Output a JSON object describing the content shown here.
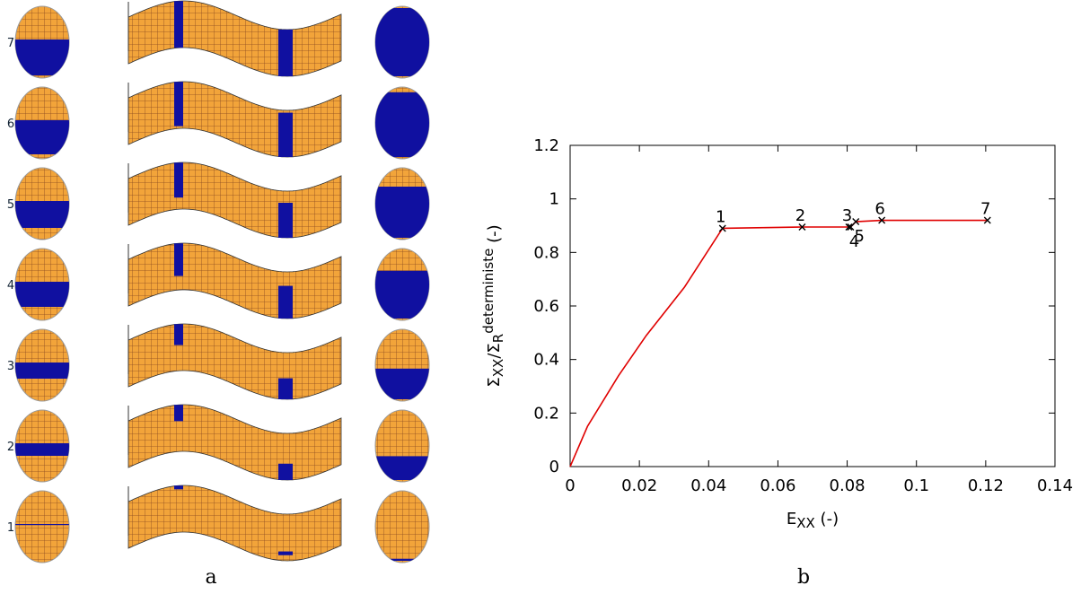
{
  "panel_a": {
    "label": "a",
    "rows": [
      "7",
      "6",
      "5",
      "4",
      "3",
      "2",
      "1"
    ]
  },
  "panel_b": {
    "label": "b"
  },
  "chart_data": {
    "type": "line",
    "xlabel_parts": [
      {
        "text": "E",
        "style": "normal"
      },
      {
        "text": "XX",
        "style": "sub"
      },
      {
        "text": " (-)",
        "style": "normal"
      }
    ],
    "ylabel_parts": [
      {
        "text": "Σ",
        "style": "normal"
      },
      {
        "text": "XX",
        "style": "sub"
      },
      {
        "text": "/Σ",
        "style": "normal"
      },
      {
        "text": "R",
        "style": "sub"
      },
      {
        "text": "deterministe",
        "style": "sup"
      },
      {
        "text": " (-)",
        "style": "normal"
      }
    ],
    "series": [
      {
        "color": "#e00000",
        "x": [
          0,
          0.005,
          0.014,
          0.022,
          0.033,
          0.044,
          0.067,
          0.081,
          0.0825,
          0.09,
          0.1205
        ],
        "values": [
          0,
          0.15,
          0.34,
          0.49,
          0.67,
          0.89,
          0.895,
          0.895,
          0.915,
          0.92,
          0.92
        ]
      }
    ],
    "points": {
      "x": [
        0.044,
        0.067,
        0.0805,
        0.081,
        0.0825,
        0.09,
        0.1205
      ],
      "y": [
        0.89,
        0.895,
        0.895,
        0.895,
        0.915,
        0.92,
        0.92
      ],
      "labels": [
        "1",
        "2",
        "3",
        "4",
        "5",
        "6",
        "7"
      ]
    },
    "xlim": [
      0,
      0.14
    ],
    "xticks": [
      0,
      0.02,
      0.04,
      0.06,
      0.08,
      0.1,
      0.12,
      0.14
    ],
    "ylim": [
      0,
      1.2
    ],
    "yticks": [
      0,
      0.2,
      0.4,
      0.6,
      0.8,
      1,
      1.2
    ]
  }
}
